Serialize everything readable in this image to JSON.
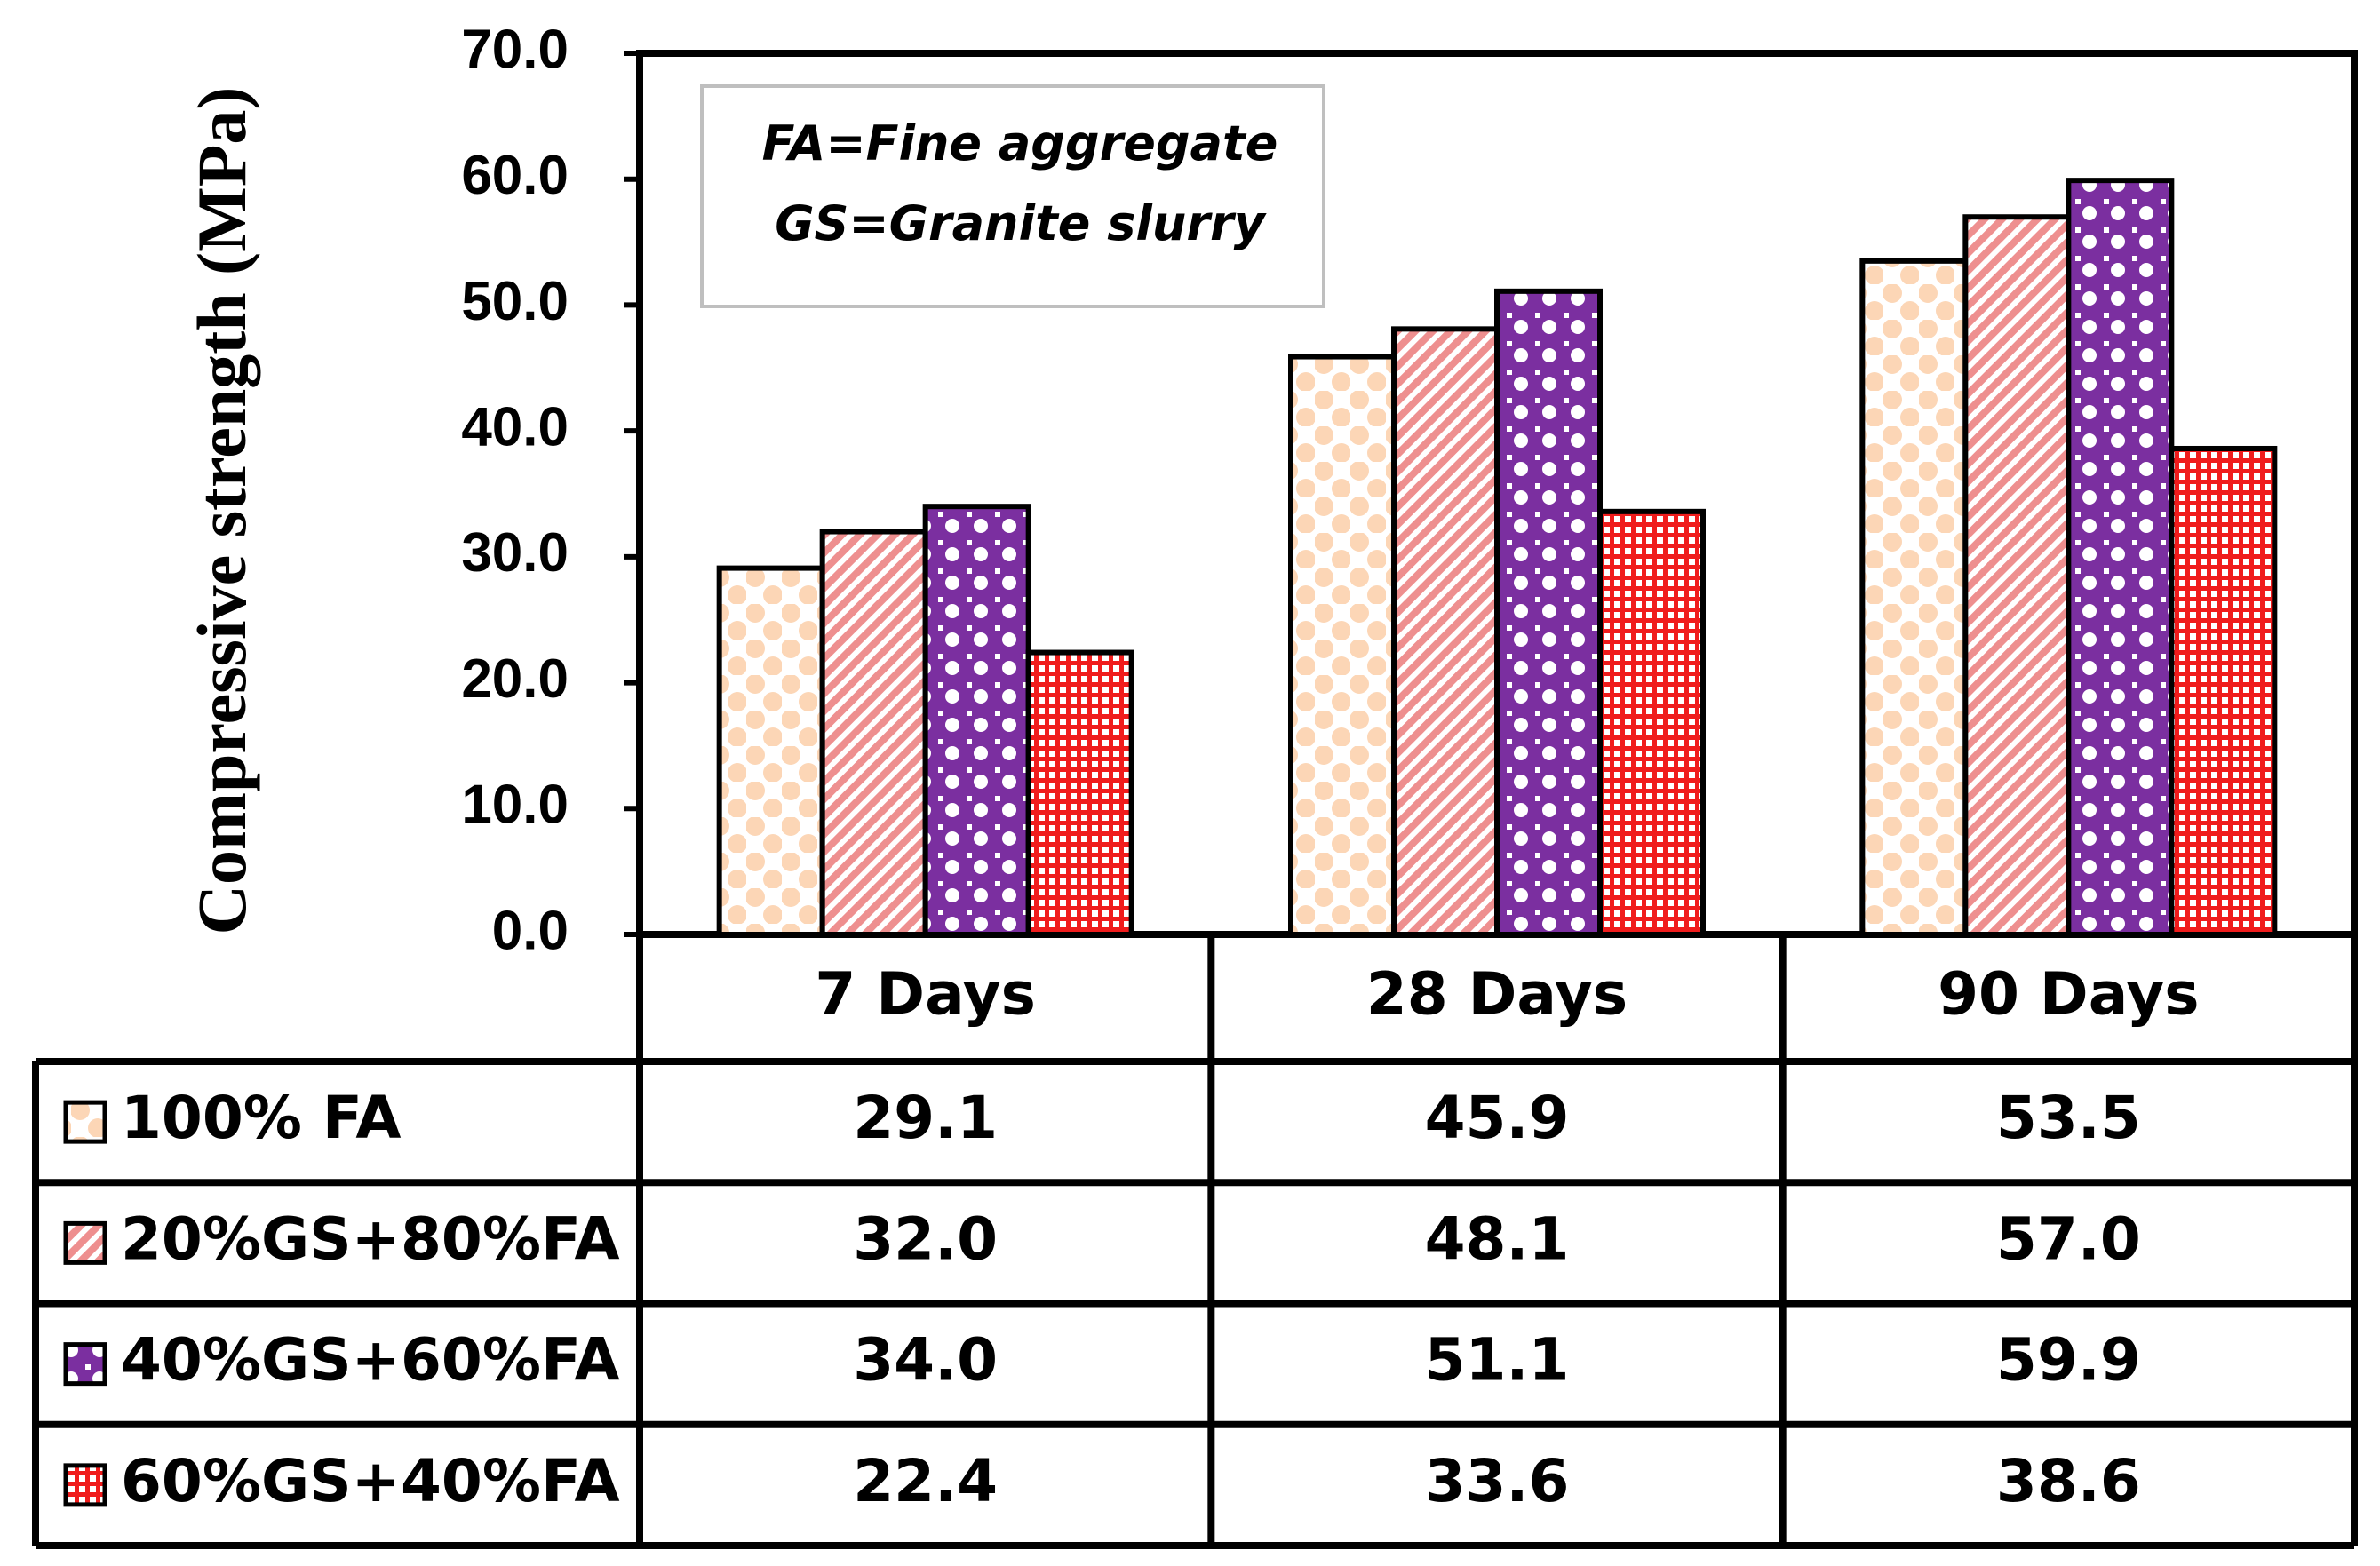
{
  "chart_data": {
    "type": "bar",
    "title": "",
    "ylabel": "Compressive strength (MPa)",
    "ylim": [
      0,
      70
    ],
    "yticks": [
      "0.0",
      "10.0",
      "20.0",
      "30.0",
      "40.0",
      "50.0",
      "60.0",
      "70.0"
    ],
    "categories": [
      "7 Days",
      "28 Days",
      "90 Days"
    ],
    "series": [
      {
        "name": "100% FA",
        "values": [
          29.1,
          45.9,
          53.5
        ],
        "color": "#fcd6b6",
        "pattern": "dots"
      },
      {
        "name": "20%GS+80%FA",
        "values": [
          32.0,
          48.1,
          57.0
        ],
        "color": "#ee8f8f",
        "pattern": "diagonal"
      },
      {
        "name": "40%GS+60%FA",
        "values": [
          34.0,
          51.1,
          59.9
        ],
        "color": "#7b2fa0",
        "pattern": "checker"
      },
      {
        "name": "60%GS+40%FA",
        "values": [
          22.4,
          33.6,
          38.6
        ],
        "color": "#f01c1c",
        "pattern": "grid"
      }
    ],
    "table_values": [
      [
        "29.1",
        "45.9",
        "53.5"
      ],
      [
        "32.0",
        "48.1",
        "57.0"
      ],
      [
        "34.0",
        "51.1",
        "59.9"
      ],
      [
        "22.4",
        "33.6",
        "38.6"
      ]
    ],
    "annotation": [
      "FA=Fine aggregate",
      "GS=Granite  slurry"
    ],
    "grid": false,
    "legend": "data-table"
  }
}
